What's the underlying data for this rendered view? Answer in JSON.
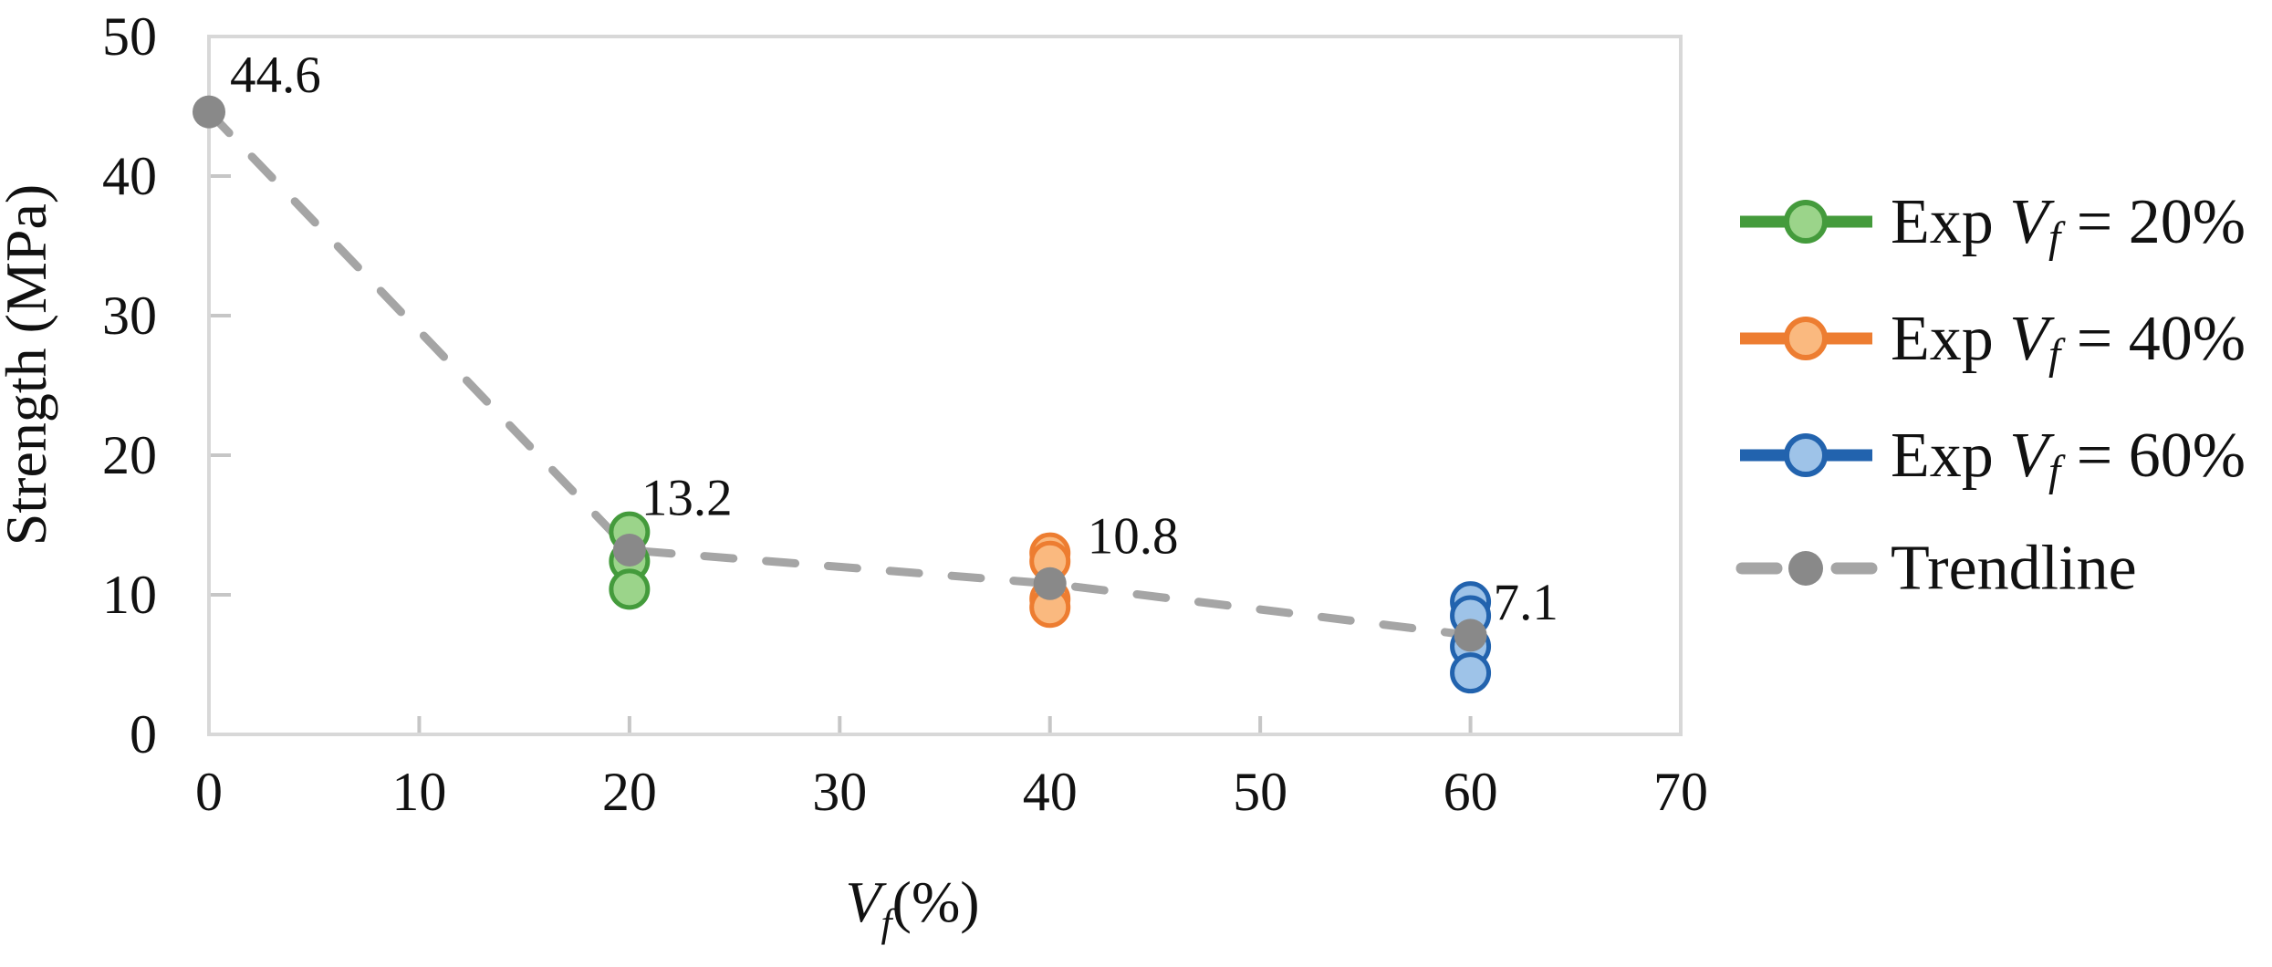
{
  "chart_data": {
    "type": "scatter",
    "title": "",
    "ylabel": "Strength (MPa)",
    "xlabel": {
      "var": "V",
      "sub": "f",
      "unit": "(%)"
    },
    "xlim": [
      0,
      70
    ],
    "ylim": [
      0,
      50
    ],
    "grid": false,
    "legend_position": "right",
    "xticks": [
      "0",
      "10",
      "20",
      "30",
      "40",
      "50",
      "60",
      "70"
    ],
    "yticks_top_to_bottom": [
      "50",
      "40",
      "30",
      "20",
      "10",
      "0"
    ],
    "series": [
      {
        "legend_prefix": "Exp ",
        "legend_var": "V",
        "legend_sub": "f",
        "legend_suffix": " = 20%",
        "x": 20,
        "values": [
          14.5,
          12.4,
          10.4
        ],
        "stroke": "#449B3C",
        "fill": "#9BD48A"
      },
      {
        "legend_prefix": "Exp ",
        "legend_var": "V",
        "legend_sub": "f",
        "legend_suffix": " = 40%",
        "x": 40,
        "values": [
          13.0,
          12.4,
          9.7,
          9.1
        ],
        "stroke": "#ED7D31",
        "fill": "#FAB97F"
      },
      {
        "legend_prefix": "Exp ",
        "legend_var": "V",
        "legend_sub": "f",
        "legend_suffix": " = 60%",
        "x": 60,
        "values": [
          9.5,
          8.5,
          6.3,
          4.4
        ],
        "stroke": "#2263AE",
        "fill": "#9EC3E8"
      }
    ],
    "trendline": {
      "label": "Trendline",
      "x": [
        0,
        20,
        40,
        60
      ],
      "y": [
        44.6,
        13.2,
        10.8,
        7.1
      ],
      "point_labels": [
        "44.6",
        "13.2",
        "10.8",
        "7.1"
      ],
      "line_color": "#A5A5A5",
      "marker_color": "#898989"
    },
    "appearance": {
      "plot_border_color": "#D8D8D8",
      "tick_color": "#C6C6C6",
      "text_color": "#111111",
      "background": "#FFFFFF"
    }
  }
}
